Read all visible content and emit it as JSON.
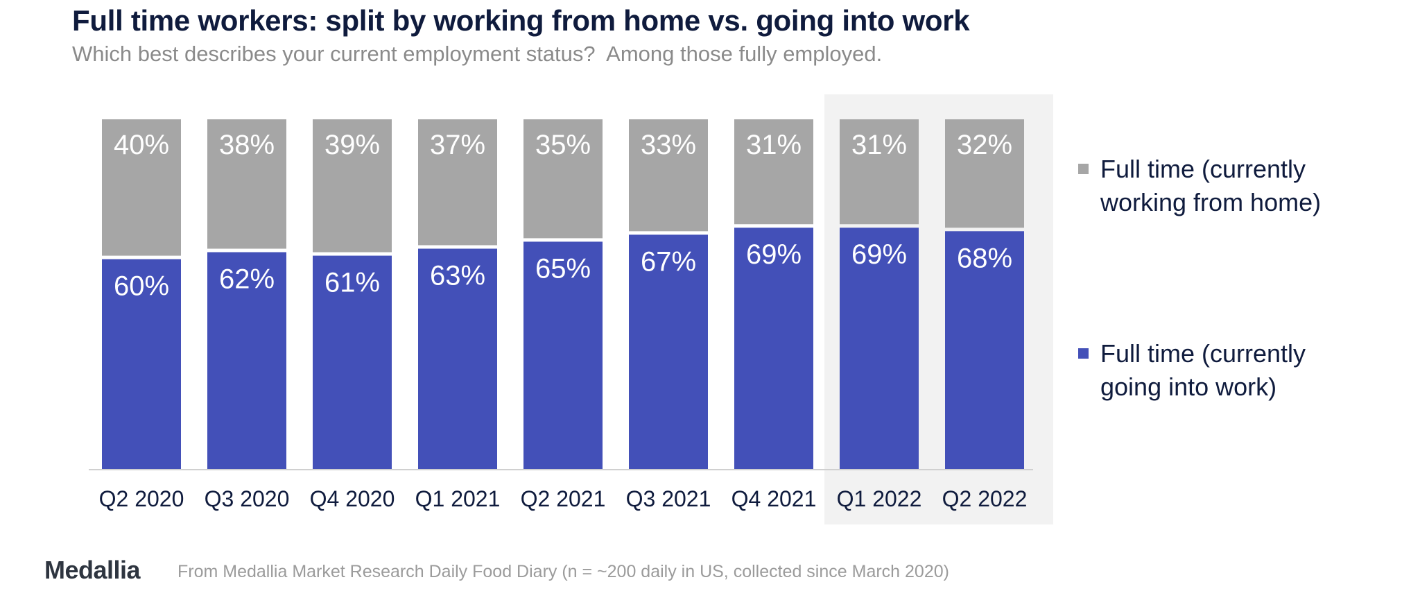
{
  "title": "Full time workers: split by working from home vs. going into work",
  "subtitle": "Which best describes your current employment status?  Among those fully employed.",
  "legend": [
    {
      "label": "Full time (currently working from home)",
      "color": "#a6a6a6"
    },
    {
      "label": "Full time (currently going into work)",
      "color": "#4350b8"
    }
  ],
  "logo_text": "Medallia",
  "footnote": "From Medallia Market Research Daily Food Diary (n = ~200 daily in US, collected since March 2020)",
  "colors": {
    "highlight_background": "#f2f2f2",
    "axis_line": "#d0d0d0",
    "label_text": "#ffffff",
    "tick_text": "#0f1b3d"
  },
  "chart_data": {
    "type": "bar",
    "stacked": true,
    "categories": [
      "Q2 2020",
      "Q3 2020",
      "Q4 2020",
      "Q1 2021",
      "Q2 2021",
      "Q3 2021",
      "Q4 2021",
      "Q1 2022",
      "Q2 2022"
    ],
    "series": [
      {
        "name": "Full time (currently going into work)",
        "values": [
          60,
          62,
          61,
          63,
          65,
          67,
          69,
          69,
          68
        ],
        "labels": [
          "60%",
          "62%",
          "61%",
          "63%",
          "65%",
          "67%",
          "69%",
          "69%",
          "68%"
        ]
      },
      {
        "name": "Full time (currently working from home)",
        "values": [
          40,
          38,
          39,
          37,
          35,
          33,
          31,
          31,
          32
        ],
        "labels": [
          "40%",
          "38%",
          "39%",
          "37%",
          "35%",
          "33%",
          "31%",
          "31%",
          "32%"
        ]
      }
    ],
    "highlighted_categories": [
      "Q1 2022",
      "Q2 2022"
    ],
    "ylim": [
      0,
      100
    ],
    "legend_position": "right",
    "grid": false
  }
}
